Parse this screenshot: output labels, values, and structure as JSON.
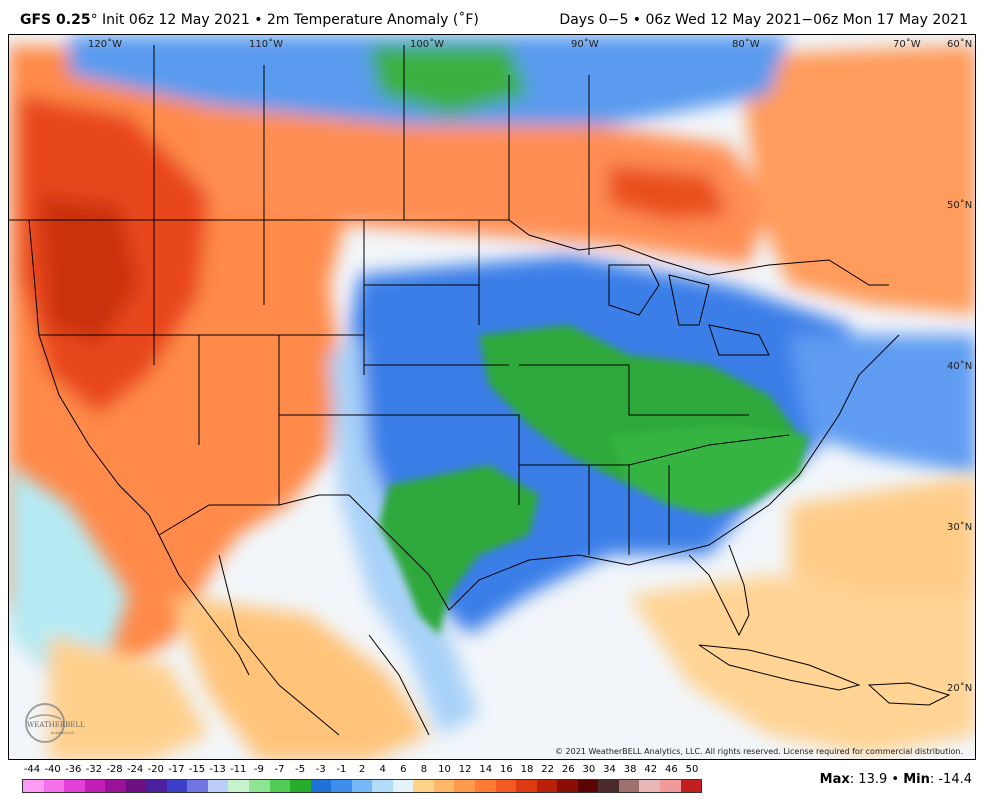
{
  "header": {
    "model": "GFS 0.25",
    "degree": "°",
    "init_text": " Init 06z 12 May 2021 • 2m Temperature Anomaly (˚F)",
    "range_text": "Days 0−5 • 06z Wed 12 May 2021−06z Mon 17 May 2021"
  },
  "map": {
    "longitude_labels": [
      {
        "text": "120˚W",
        "value": -120
      },
      {
        "text": "110˚W",
        "value": -110
      },
      {
        "text": "100˚W",
        "value": -100
      },
      {
        "text": "90˚W",
        "value": -90
      },
      {
        "text": "80˚W",
        "value": -80
      },
      {
        "text": "70˚W",
        "value": -70
      }
    ],
    "latitude_labels": [
      {
        "text": "60˚N",
        "value": 60
      },
      {
        "text": "50˚N",
        "value": 50
      },
      {
        "text": "40˚N",
        "value": 40
      },
      {
        "text": "30˚N",
        "value": 30
      },
      {
        "text": "20˚N",
        "value": 20
      }
    ],
    "copyright": "© 2021 WeatherBELL Analytics, LLC. All rights reserved. License required for commercial distribution."
  },
  "logo": {
    "text": "WEATHERBELL",
    "subtext": "Analytics LLC",
    "icon": "weatherbell-logo-icon"
  },
  "scale": {
    "labels": [
      "-44",
      "-40",
      "-36",
      "-32",
      "-28",
      "-24",
      "-20",
      "-17",
      "-15",
      "-13",
      "-11",
      "-9",
      "-7",
      "-5",
      "-3",
      "-1",
      "2",
      "4",
      "6",
      "8",
      "10",
      "12",
      "14",
      "16",
      "18",
      "22",
      "26",
      "30",
      "34",
      "38",
      "42",
      "46",
      "50"
    ],
    "colors": [
      "#ff9cf5",
      "#f572ec",
      "#e33fd9",
      "#c31fb8",
      "#9a119a",
      "#6d0f7e",
      "#4b1fa0",
      "#3a3ec9",
      "#6f76e4",
      "#b9cdf6",
      "#c7f2cb",
      "#8fe494",
      "#52cc56",
      "#27ad2c",
      "#1f73d8",
      "#3e8ef0",
      "#75b8f6",
      "#b1dcfa",
      "#e3f2fb",
      "#ffd28c",
      "#ffb86a",
      "#ff9a4e",
      "#ff7a33",
      "#f55a22",
      "#de3a12",
      "#b8200a",
      "#8a0e06",
      "#5a0503",
      "#4a2a2a",
      "#a07070",
      "#e8b8b8",
      "#f09a9a",
      "#c22020"
    ]
  },
  "stats": {
    "max_label": "Max",
    "max_value": "13.9",
    "sep": " • ",
    "min_label": "Min",
    "min_value": "-14.4"
  }
}
